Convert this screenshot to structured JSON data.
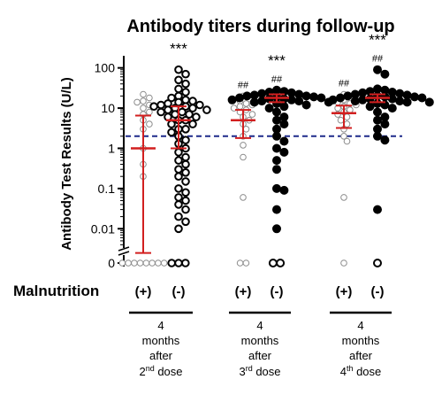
{
  "chart_data": {
    "type": "scatter",
    "title": "Antibody titers during follow-up",
    "ylabel": "Antibody Test Results (U/L)",
    "yscale": "log",
    "ylim": [
      0.003,
      200
    ],
    "y_ticks": [
      {
        "value": 0.01,
        "label": "0.01"
      },
      {
        "value": 0.1,
        "label": "0.1"
      },
      {
        "value": 1,
        "label": "1"
      },
      {
        "value": 10,
        "label": "10"
      },
      {
        "value": 100,
        "label": "100"
      }
    ],
    "y_zero_label": "0",
    "axis_break": true,
    "threshold": {
      "value": 2,
      "color": "#1f2a8a",
      "style": "dashed"
    },
    "row_label": "Malnutrition",
    "summary_color": "#d21f1f",
    "groups": [
      {
        "label_lines": [
          "4",
          "months",
          "after"
        ],
        "dose_num": "2",
        "dose_sup": "nd",
        "dose_word": " dose",
        "series": [
          {
            "malnutrition": "(+)",
            "style": "open-light",
            "median": 1.0,
            "q1": 0.0025,
            "q3": 6.5,
            "points": [
              22,
              18,
              15,
              14,
              12,
              10,
              8,
              7,
              5,
              4,
              3,
              1,
              0.4,
              0.2,
              0,
              0,
              0,
              0,
              0,
              0,
              0,
              0
            ],
            "n_zero": 8,
            "hash": "",
            "stars": ""
          },
          {
            "malnutrition": "(-)",
            "style": "open-dark",
            "median": 5.0,
            "q1": 1.0,
            "q3": 11.0,
            "points": [
              90,
              70,
              50,
              40,
              30,
              25,
              20,
              18,
              16,
              15,
              14,
              13,
              12,
              12,
              11,
              11,
              10,
              10,
              9,
              9,
              8,
              8,
              7,
              7,
              6,
              6,
              5,
              5,
              4,
              4,
              3,
              3,
              2.5,
              2,
              1.6,
              1.3,
              1,
              0.8,
              0.6,
              0.5,
              0.4,
              0.3,
              0.25,
              0.2,
              0.15,
              0.1,
              0.08,
              0.06,
              0.05,
              0.04,
              0.03,
              0.02,
              0.015,
              0.01,
              0,
              0,
              0
            ],
            "n_zero": 3,
            "hash": "",
            "stars": "***"
          }
        ]
      },
      {
        "label_lines": [
          "4",
          "months",
          "after"
        ],
        "dose_num": "3",
        "dose_sup": "rd",
        "dose_word": " dose",
        "series": [
          {
            "malnutrition": "(+)",
            "style": "open-light",
            "median": 5.0,
            "q1": 1.8,
            "q3": 9.0,
            "points": [
              20,
              17,
              15,
              13,
              12,
              11,
              10,
              9,
              8,
              7,
              6,
              5,
              4,
              3,
              2,
              1.2,
              0.6,
              0.06,
              0,
              0
            ],
            "n_zero": 2,
            "hash": "##",
            "stars": ""
          },
          {
            "malnutrition": "(-)",
            "style": "filled",
            "median": 18.0,
            "q1": 14.0,
            "q3": 22.0,
            "points": [
              28,
              26,
              25,
              24,
              23,
              22,
              21,
              20,
              20,
              19,
              19,
              18,
              18,
              17,
              17,
              16,
              16,
              15,
              15,
              14,
              14,
              13,
              12,
              11,
              10,
              8,
              6,
              5,
              4,
              3,
              2,
              1.5,
              1,
              0.8,
              0.5,
              0.3,
              0.1,
              0.09,
              0.03,
              0.01,
              0,
              0
            ],
            "n_zero": 2,
            "hash": "##",
            "stars": "***"
          }
        ]
      },
      {
        "label_lines": [
          "4",
          "months",
          "after"
        ],
        "dose_num": "4",
        "dose_sup": "th",
        "dose_word": " dose",
        "series": [
          {
            "malnutrition": "(+)",
            "style": "open-light",
            "median": 7.5,
            "q1": 3.2,
            "q3": 11.5,
            "points": [
              22,
              18,
              16,
              14,
              13,
              12,
              11,
              10,
              9,
              8,
              7,
              6,
              5,
              4,
              3,
              2,
              1.5,
              0.06,
              0
            ],
            "n_zero": 1,
            "hash": "##",
            "stars": ""
          },
          {
            "malnutrition": "(-)",
            "style": "filled",
            "median": 18.0,
            "q1": 14.0,
            "q3": 22.0,
            "points": [
              90,
              70,
              30,
              28,
              26,
              25,
              24,
              23,
              22,
              21,
              20,
              20,
              19,
              19,
              18,
              18,
              17,
              17,
              16,
              16,
              15,
              15,
              14,
              14,
              13,
              12,
              11,
              10,
              8,
              6,
              5,
              4,
              3,
              2,
              1.6,
              0.03,
              0
            ],
            "n_zero": 1,
            "hash": "##",
            "stars": "***"
          }
        ]
      }
    ]
  }
}
